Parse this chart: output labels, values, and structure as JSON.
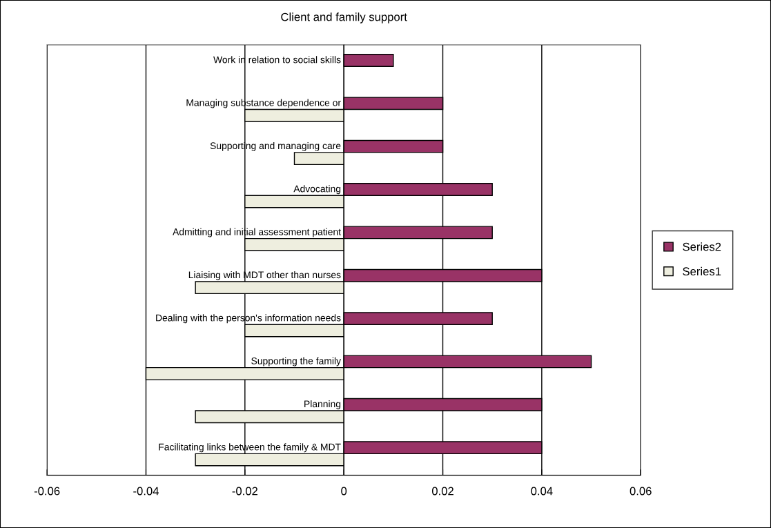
{
  "chart_data": {
    "type": "bar",
    "orientation": "horizontal",
    "title": "Client and family support",
    "categories": [
      "Work in relation to social skills",
      "Managing substance dependence or",
      "Supporting and managing care",
      "Advocating",
      "Admitting and initial assessment patient",
      "Liaising with MDT other than nurses",
      "Dealing with the person's information needs",
      "Supporting the family",
      "Planning",
      "Facilitating links between the family & MDT"
    ],
    "series": [
      {
        "name": "Series2",
        "color": "#993366",
        "values": [
          0.01,
          0.02,
          0.02,
          0.03,
          0.03,
          0.04,
          0.03,
          0.05,
          0.04,
          0.04
        ]
      },
      {
        "name": "Series1",
        "color": "#eeeedf",
        "values": [
          null,
          -0.02,
          -0.01,
          -0.02,
          -0.02,
          -0.03,
          -0.02,
          -0.04,
          -0.03,
          -0.03
        ]
      }
    ],
    "xlim": [
      -0.06,
      0.06
    ],
    "xticks": [
      -0.06,
      -0.04,
      -0.02,
      0,
      0.02,
      0.04,
      0.06
    ],
    "grid": "x",
    "legend": "right"
  }
}
